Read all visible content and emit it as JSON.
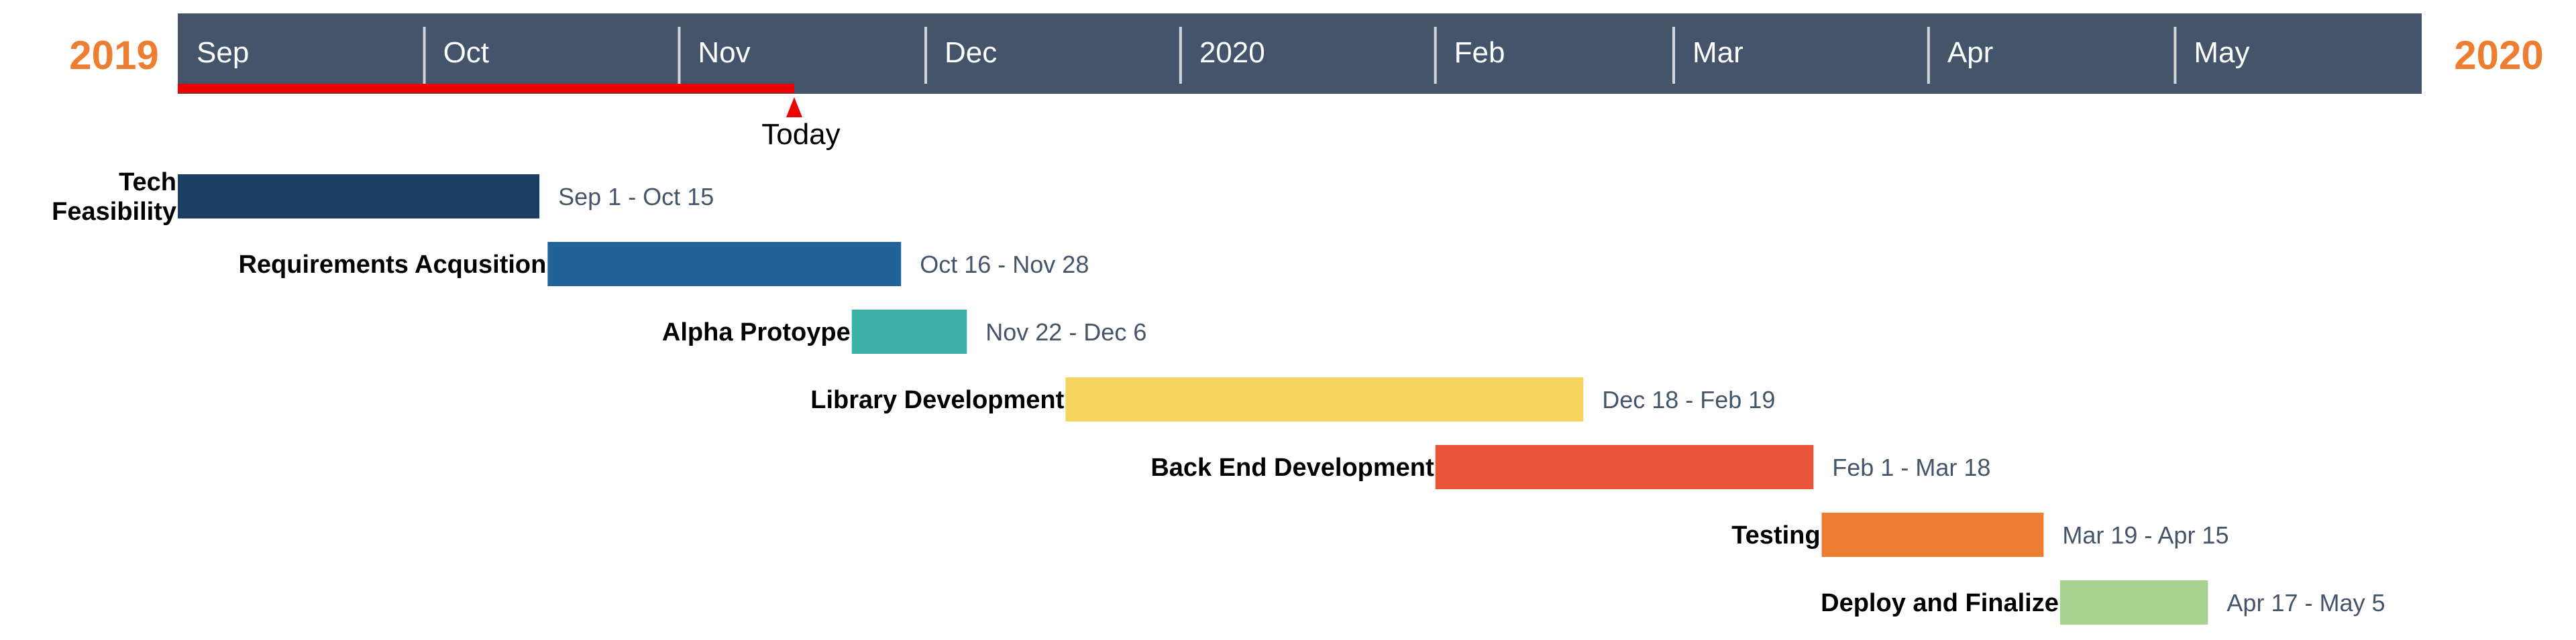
{
  "chart_data": {
    "type": "gantt",
    "start_year_label": "2019",
    "end_year_label": "2020",
    "axis_start": "2019-09-01",
    "axis_end": "2020-05-31",
    "today": "2019-11-15",
    "today_label": "Today",
    "months": [
      {
        "label": "Sep",
        "date": "2019-09-01"
      },
      {
        "label": "Oct",
        "date": "2019-10-01"
      },
      {
        "label": "Nov",
        "date": "2019-11-01"
      },
      {
        "label": "Dec",
        "date": "2019-12-01"
      },
      {
        "label": "2020",
        "date": "2020-01-01"
      },
      {
        "label": "Feb",
        "date": "2020-02-01"
      },
      {
        "label": "Mar",
        "date": "2020-03-01"
      },
      {
        "label": "Apr",
        "date": "2020-04-01"
      },
      {
        "label": "May",
        "date": "2020-05-01"
      }
    ],
    "tasks": [
      {
        "name": "Tech Feasibility",
        "label_lines": [
          "Tech",
          "Feasibility"
        ],
        "start": "2019-09-01",
        "end": "2019-10-15",
        "range_label": "Sep 1 - Oct 15",
        "color": "#1B3F63"
      },
      {
        "name": "Requirements Acqusition",
        "label_lines": [
          "Requirements Acqusition"
        ],
        "start": "2019-10-16",
        "end": "2019-11-28",
        "range_label": "Oct 16 - Nov 28",
        "color": "#21629A"
      },
      {
        "name": "Alpha Protoype",
        "label_lines": [
          "Alpha Protoype"
        ],
        "start": "2019-11-22",
        "end": "2019-12-06",
        "range_label": "Nov 22 - Dec 6",
        "color": "#3CAFA6"
      },
      {
        "name": "Library Development",
        "label_lines": [
          "Library Development"
        ],
        "start": "2019-12-18",
        "end": "2020-02-19",
        "range_label": "Dec 18 - Feb 19",
        "color": "#F4D35E"
      },
      {
        "name": "Back End Development",
        "label_lines": [
          "Back End Development"
        ],
        "start": "2020-02-01",
        "end": "2020-03-18",
        "range_label": "Feb 1 - Mar 18",
        "color": "#EA553A"
      },
      {
        "name": "Testing",
        "label_lines": [
          "Testing"
        ],
        "start": "2020-03-19",
        "end": "2020-04-15",
        "range_label": "Mar 19 - Apr 15",
        "color": "#ED7D31"
      },
      {
        "name": "Deploy and Finalize",
        "label_lines": [
          "Deploy and Finalize"
        ],
        "start": "2020-04-17",
        "end": "2020-05-05",
        "range_label": "Apr 17 - May 5",
        "color": "#A9D18E"
      }
    ],
    "colors": {
      "header_band": "#44546A",
      "separator": "#D0D4DB",
      "today_marker": "#EE0000",
      "year_label": "#ED7D31"
    }
  }
}
